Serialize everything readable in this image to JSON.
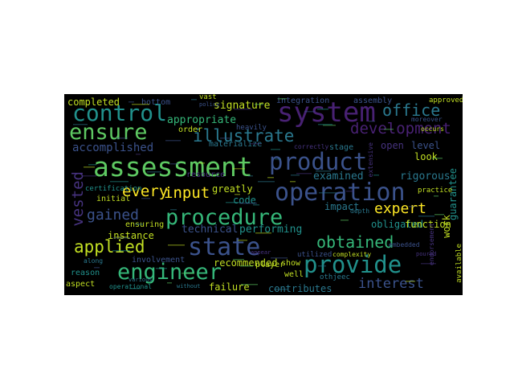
{
  "wordcloud": {
    "background": "#000000",
    "colormap": "viridis",
    "words": [
      {
        "text": "assessment",
        "color": "#5ec962"
      },
      {
        "text": "operation",
        "color": "#3b528b"
      },
      {
        "text": "procedure",
        "color": "#35b779"
      },
      {
        "text": "provide",
        "color": "#21918c"
      },
      {
        "text": "product",
        "color": "#3b528b"
      },
      {
        "text": "system",
        "color": "#482173"
      },
      {
        "text": "control",
        "color": "#21918c"
      },
      {
        "text": "ensure",
        "color": "#5ec962"
      },
      {
        "text": "engineer",
        "color": "#35b779"
      },
      {
        "text": "state",
        "color": "#3b528b"
      },
      {
        "text": "illustrate",
        "color": "#2a788e"
      },
      {
        "text": "development",
        "color": "#482173"
      },
      {
        "text": "office",
        "color": "#2a788e"
      },
      {
        "text": "applied",
        "color": "#c2df23"
      },
      {
        "text": "obtained",
        "color": "#35b779"
      },
      {
        "text": "every",
        "color": "#fde725"
      },
      {
        "text": "input",
        "color": "#fde725"
      },
      {
        "text": "expert",
        "color": "#fde725"
      },
      {
        "text": "gained",
        "color": "#3b528b"
      },
      {
        "text": "interest",
        "color": "#3b528b"
      },
      {
        "text": "accomplished",
        "color": "#3b528b"
      },
      {
        "text": "vested",
        "color": "#46327e"
      },
      {
        "text": "appropriate",
        "color": "#35b779"
      },
      {
        "text": "signature",
        "color": "#c2df23"
      },
      {
        "text": "examined",
        "color": "#2a788e"
      },
      {
        "text": "rigorous",
        "color": "#2a788e"
      },
      {
        "text": "technical",
        "color": "#3b528b"
      },
      {
        "text": "performing",
        "color": "#21918c"
      },
      {
        "text": "recommended",
        "color": "#c2df23"
      },
      {
        "text": "contributes",
        "color": "#2a788e"
      },
      {
        "text": "failure",
        "color": "#c2df23"
      },
      {
        "text": "instance",
        "color": "#c2df23"
      },
      {
        "text": "greatly",
        "color": "#c2df23"
      },
      {
        "text": "code",
        "color": "#21918c"
      },
      {
        "text": "impact",
        "color": "#2a788e"
      },
      {
        "text": "obligated",
        "color": "#21918c"
      },
      {
        "text": "function",
        "color": "#c2df23"
      },
      {
        "text": "guarantee",
        "color": "#21918c"
      },
      {
        "text": "work",
        "color": "#c2df23"
      },
      {
        "text": "look",
        "color": "#c2df23"
      },
      {
        "text": "level",
        "color": "#3b528b"
      },
      {
        "text": "open",
        "color": "#46327e"
      },
      {
        "text": "completed",
        "color": "#c2df23"
      },
      {
        "text": "bottom",
        "color": "#3b528b"
      },
      {
        "text": "integration",
        "color": "#3b528b"
      },
      {
        "text": "assembly",
        "color": "#3b528b"
      },
      {
        "text": "approved",
        "color": "#c2df23"
      },
      {
        "text": "stage",
        "color": "#2a788e"
      },
      {
        "text": "materialize",
        "color": "#2a788e"
      },
      {
        "text": "resource",
        "color": "#46327e"
      },
      {
        "text": "order",
        "color": "#c2df23"
      },
      {
        "text": "heavily",
        "color": "#3b528b"
      },
      {
        "text": "vast",
        "color": "#c2df23"
      },
      {
        "text": "initial",
        "color": "#c2df23"
      },
      {
        "text": "ensuring",
        "color": "#c2df23"
      },
      {
        "text": "certification",
        "color": "#21918c"
      },
      {
        "text": "reason",
        "color": "#21918c"
      },
      {
        "text": "aspect",
        "color": "#c2df23"
      },
      {
        "text": "player",
        "color": "#c2df23"
      },
      {
        "text": "involvement",
        "color": "#3b528b"
      },
      {
        "text": "show",
        "color": "#c2df23"
      },
      {
        "text": "well",
        "color": "#c2df23"
      },
      {
        "text": "othjeec",
        "color": "#2a788e"
      },
      {
        "text": "utilized",
        "color": "#3b528b"
      },
      {
        "text": "complexity",
        "color": "#c2df23"
      },
      {
        "text": "operational",
        "color": "#21918c"
      },
      {
        "text": "along",
        "color": "#2a788e"
      },
      {
        "text": "embedded",
        "color": "#3b528b"
      },
      {
        "text": "depth",
        "color": "#2a788e"
      },
      {
        "text": "practice",
        "color": "#c2df23"
      },
      {
        "text": "available",
        "color": "#c2df23"
      },
      {
        "text": "endorsement",
        "color": "#46327e"
      },
      {
        "text": "moreover",
        "color": "#3b528b"
      },
      {
        "text": "occurs",
        "color": "#c2df23"
      },
      {
        "text": "extensive",
        "color": "#46327e"
      },
      {
        "text": "correctly",
        "color": "#46327e"
      },
      {
        "text": "various",
        "color": "#2a788e"
      },
      {
        "text": "without",
        "color": "#2a788e"
      },
      {
        "text": "policy",
        "color": "#3b528b"
      },
      {
        "text": "appear",
        "color": "#46327e"
      },
      {
        "text": "poured",
        "color": "#46327e"
      }
    ]
  }
}
